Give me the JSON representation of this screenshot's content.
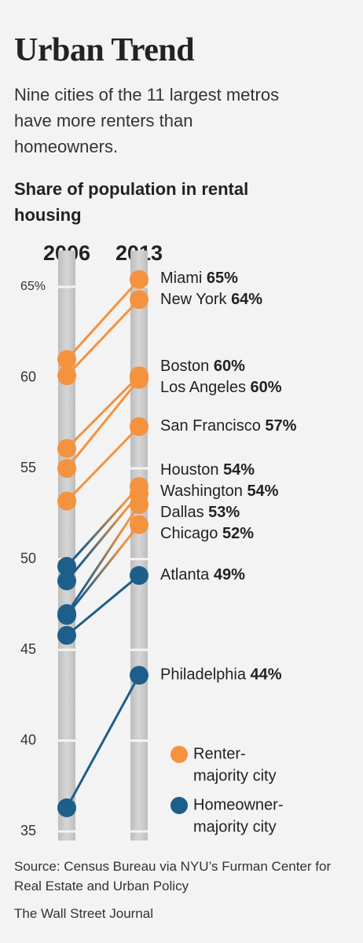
{
  "header": {
    "title": "Urban Trend",
    "subtitle": "Nine cities of the 11 largest metros have more renters than homeowners."
  },
  "chart_data": {
    "type": "slope",
    "title": "Share of population in rental housing",
    "x": [
      "2006",
      "2013"
    ],
    "ylim": [
      34.5,
      67
    ],
    "yticks": [
      35,
      40,
      45,
      50,
      55,
      60,
      {
        "value": 65,
        "label": "65%"
      }
    ],
    "series": [
      {
        "name": "Miami",
        "values": [
          61.0,
          65.4
        ],
        "value_labels": [
          null,
          "65%"
        ],
        "colors": [
          "#f5923e",
          "#f5923e"
        ]
      },
      {
        "name": "New York",
        "values": [
          60.1,
          64.3
        ],
        "value_labels": [
          null,
          "64%"
        ],
        "colors": [
          "#f5923e",
          "#f5923e"
        ]
      },
      {
        "name": "Boston",
        "values": [
          56.1,
          60.1
        ],
        "value_labels": [
          null,
          "60%"
        ],
        "colors": [
          "#f5923e",
          "#f5923e"
        ]
      },
      {
        "name": "Los Angeles",
        "values": [
          55.0,
          59.9
        ],
        "value_labels": [
          null,
          "60%"
        ],
        "colors": [
          "#f5923e",
          "#f5923e"
        ]
      },
      {
        "name": "San Francisco",
        "values": [
          53.2,
          57.3
        ],
        "value_labels": [
          null,
          "57%"
        ],
        "colors": [
          "#f5923e",
          "#f5923e"
        ]
      },
      {
        "name": "Houston",
        "values": [
          49.6,
          54.0
        ],
        "value_labels": [
          null,
          "54%"
        ],
        "colors": [
          "#1d5f8a",
          "#f5923e"
        ]
      },
      {
        "name": "Washington",
        "values": [
          48.8,
          53.6
        ],
        "value_labels": [
          null,
          "54%"
        ],
        "colors": [
          "#1d5f8a",
          "#f5923e"
        ]
      },
      {
        "name": "Dallas",
        "values": [
          47.0,
          53.0
        ],
        "value_labels": [
          null,
          "53%"
        ],
        "colors": [
          "#1d5f8a",
          "#f5923e"
        ]
      },
      {
        "name": "Chicago",
        "values": [
          46.9,
          51.9
        ],
        "value_labels": [
          null,
          "52%"
        ],
        "colors": [
          "#1d5f8a",
          "#f5923e"
        ]
      },
      {
        "name": "Atlanta",
        "values": [
          45.8,
          49.1
        ],
        "value_labels": [
          null,
          "49%"
        ],
        "colors": [
          "#1d5f8a",
          "#1d5f8a"
        ]
      },
      {
        "name": "Philadelphia",
        "values": [
          36.3,
          43.6
        ],
        "value_labels": [
          null,
          "44%"
        ],
        "colors": [
          "#1d5f8a",
          "#1d5f8a"
        ]
      }
    ],
    "legend": [
      {
        "label": [
          "Renter-",
          "majority city"
        ],
        "color": "#f5923e"
      },
      {
        "label": [
          "Homeowner-",
          "majority city"
        ],
        "color": "#1d5f8a"
      }
    ]
  },
  "footer": {
    "source": "Source: Census Bureau via NYU’s Furman Center for Real Estate and Urban Policy",
    "credit": "The Wall Street Journal"
  }
}
